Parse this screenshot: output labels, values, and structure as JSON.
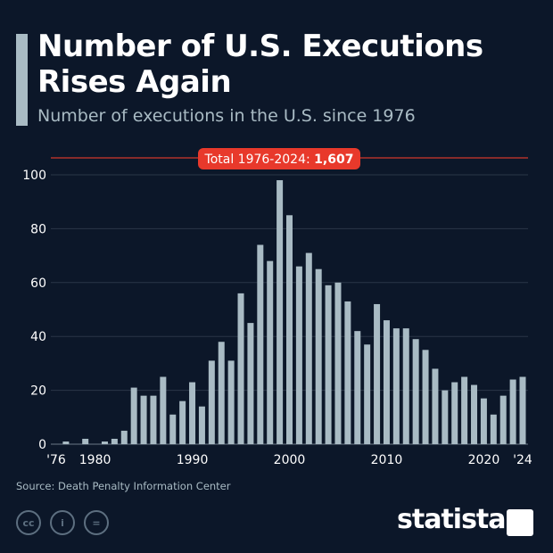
{
  "header": {
    "title_line1": "Number of U.S. Executions",
    "title_line2": "Rises Again",
    "subtitle": "Number of executions in the U.S. since 1976"
  },
  "chart_data": {
    "type": "bar",
    "title": "Number of U.S. Executions Rises Again",
    "subtitle": "Number of executions in the U.S. since 1976",
    "categories": [
      1976,
      1977,
      1978,
      1979,
      1980,
      1981,
      1982,
      1983,
      1984,
      1985,
      1986,
      1987,
      1988,
      1989,
      1990,
      1991,
      1992,
      1993,
      1994,
      1995,
      1996,
      1997,
      1998,
      1999,
      2000,
      2001,
      2002,
      2003,
      2004,
      2005,
      2006,
      2007,
      2008,
      2009,
      2010,
      2011,
      2012,
      2013,
      2014,
      2015,
      2016,
      2017,
      2018,
      2019,
      2020,
      2021,
      2022,
      2023,
      2024
    ],
    "values": [
      0,
      1,
      0,
      2,
      0,
      1,
      2,
      5,
      21,
      18,
      18,
      25,
      11,
      16,
      23,
      14,
      31,
      38,
      31,
      56,
      45,
      74,
      68,
      98,
      85,
      66,
      71,
      65,
      59,
      60,
      53,
      42,
      37,
      52,
      46,
      43,
      43,
      39,
      35,
      28,
      20,
      23,
      25,
      22,
      17,
      11,
      18,
      24,
      25
    ],
    "ylim": [
      0,
      100
    ],
    "yticks": [
      0,
      20,
      40,
      60,
      80,
      100
    ],
    "xtick_labels": [
      {
        "year": 1976,
        "label": "'76"
      },
      {
        "year": 1980,
        "label": "1980"
      },
      {
        "year": 1990,
        "label": "1990"
      },
      {
        "year": 2000,
        "label": "2000"
      },
      {
        "year": 2010,
        "label": "2010"
      },
      {
        "year": 2020,
        "label": "2020"
      },
      {
        "year": 2024,
        "label": "'24"
      }
    ],
    "grid": true,
    "annotation": {
      "label": "Total 1976-2024: ",
      "value": "1,607"
    },
    "colors": {
      "bar": "#a9bbc4",
      "annotation": "#e8392b",
      "background": "#0c1729"
    }
  },
  "footer": {
    "source": "Source: Death Penalty Information Center",
    "cc_icons": [
      "cc",
      "by",
      "="
    ],
    "logo": "statista"
  }
}
